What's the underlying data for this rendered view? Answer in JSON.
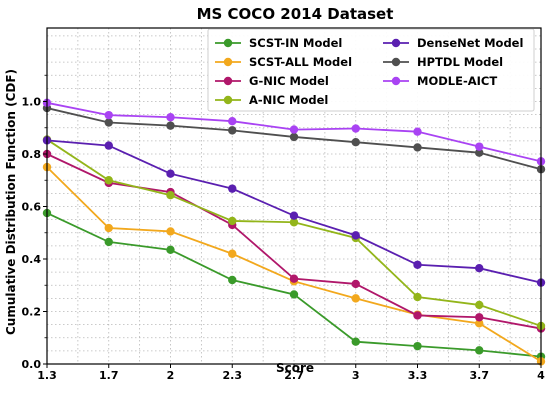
{
  "chart_data": {
    "type": "line",
    "title": "MS COCO 2014 Dataset",
    "xlabel": "Score",
    "ylabel": "Cumulative Distribution Function (CDF)",
    "x": [
      1.3,
      1.7,
      2,
      2.3,
      2.7,
      3,
      3.3,
      3.7,
      4
    ],
    "x_tick_labels": [
      "1.3",
      "1.7",
      "2",
      "2.3",
      "2.7",
      "3",
      "3.3",
      "3.7",
      "4"
    ],
    "y_ticks": [
      0.0,
      0.2,
      0.4,
      0.6,
      0.8,
      1.0
    ],
    "y_tick_labels": [
      "0.0",
      "0.2",
      "0.4",
      "0.6",
      "0.8",
      "1.0"
    ],
    "ylim": [
      0,
      1.28
    ],
    "grid": true,
    "legend_position": "top, two columns",
    "series": [
      {
        "name": "SCST-IN Model",
        "color": "#3a9a2a",
        "values": [
          0.575,
          0.465,
          0.435,
          0.32,
          0.265,
          0.085,
          0.068,
          0.052,
          0.028
        ]
      },
      {
        "name": "SCST-ALL Model",
        "color": "#f2a81d",
        "values": [
          0.75,
          0.518,
          0.505,
          0.42,
          0.315,
          0.25,
          0.188,
          0.155,
          0.01
        ]
      },
      {
        "name": "G-NIC Model",
        "color": "#b0176a",
        "values": [
          0.8,
          0.69,
          0.655,
          0.53,
          0.325,
          0.305,
          0.185,
          0.178,
          0.135
        ]
      },
      {
        "name": "A-NIC Model",
        "color": "#93b51a",
        "values": [
          0.855,
          0.7,
          0.643,
          0.545,
          0.54,
          0.48,
          0.255,
          0.225,
          0.145
        ]
      },
      {
        "name": "DenseNet Model",
        "color": "#5a1fb0",
        "values": [
          0.852,
          0.832,
          0.725,
          0.668,
          0.565,
          0.49,
          0.378,
          0.365,
          0.31
        ]
      },
      {
        "name": "HPTDL Model",
        "color": "#4f4f4f",
        "values": [
          0.975,
          0.92,
          0.908,
          0.89,
          0.865,
          0.845,
          0.825,
          0.805,
          0.742
        ]
      },
      {
        "name": "MODLE-AICT",
        "color": "#a943f3",
        "values": [
          0.995,
          0.948,
          0.94,
          0.925,
          0.893,
          0.897,
          0.885,
          0.828,
          0.772
        ]
      }
    ]
  }
}
